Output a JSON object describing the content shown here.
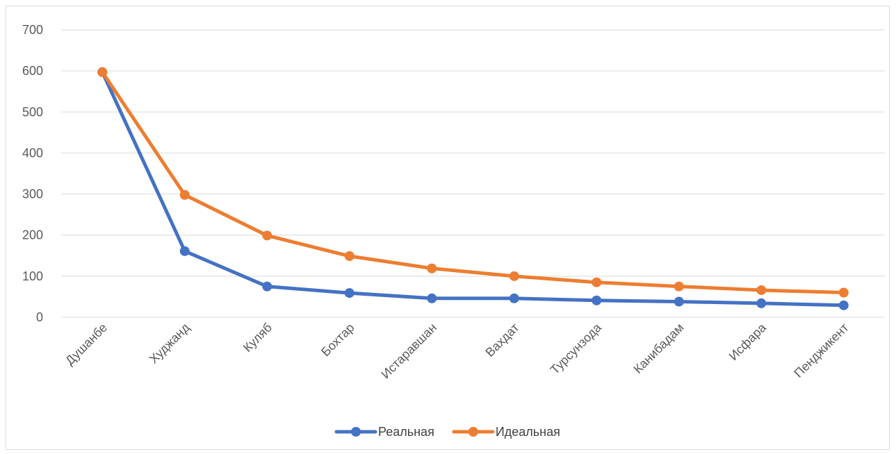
{
  "chart_data": {
    "type": "line",
    "title": "",
    "xlabel": "",
    "ylabel": "",
    "categories": [
      "Душанбе",
      "Худжанд",
      "Куляб",
      "Бохтар",
      "Истаравшан",
      "Вахдат",
      "Турсунзода",
      "Канибадам",
      "Исфара",
      "Пенджикент"
    ],
    "series": [
      {
        "name": "Реальная",
        "color": "#4472c4",
        "values": [
          597,
          161,
          75,
          59,
          46,
          46,
          41,
          38,
          34,
          29
        ]
      },
      {
        "name": "Идеальная",
        "color": "#ed7d31",
        "values": [
          597,
          298,
          199,
          149,
          119,
          100,
          85,
          75,
          66,
          60
        ]
      }
    ],
    "ylim": [
      0,
      700
    ],
    "yticks": [
      0,
      100,
      200,
      300,
      400,
      500,
      600,
      700
    ],
    "grid": true,
    "legend": "bottom"
  }
}
